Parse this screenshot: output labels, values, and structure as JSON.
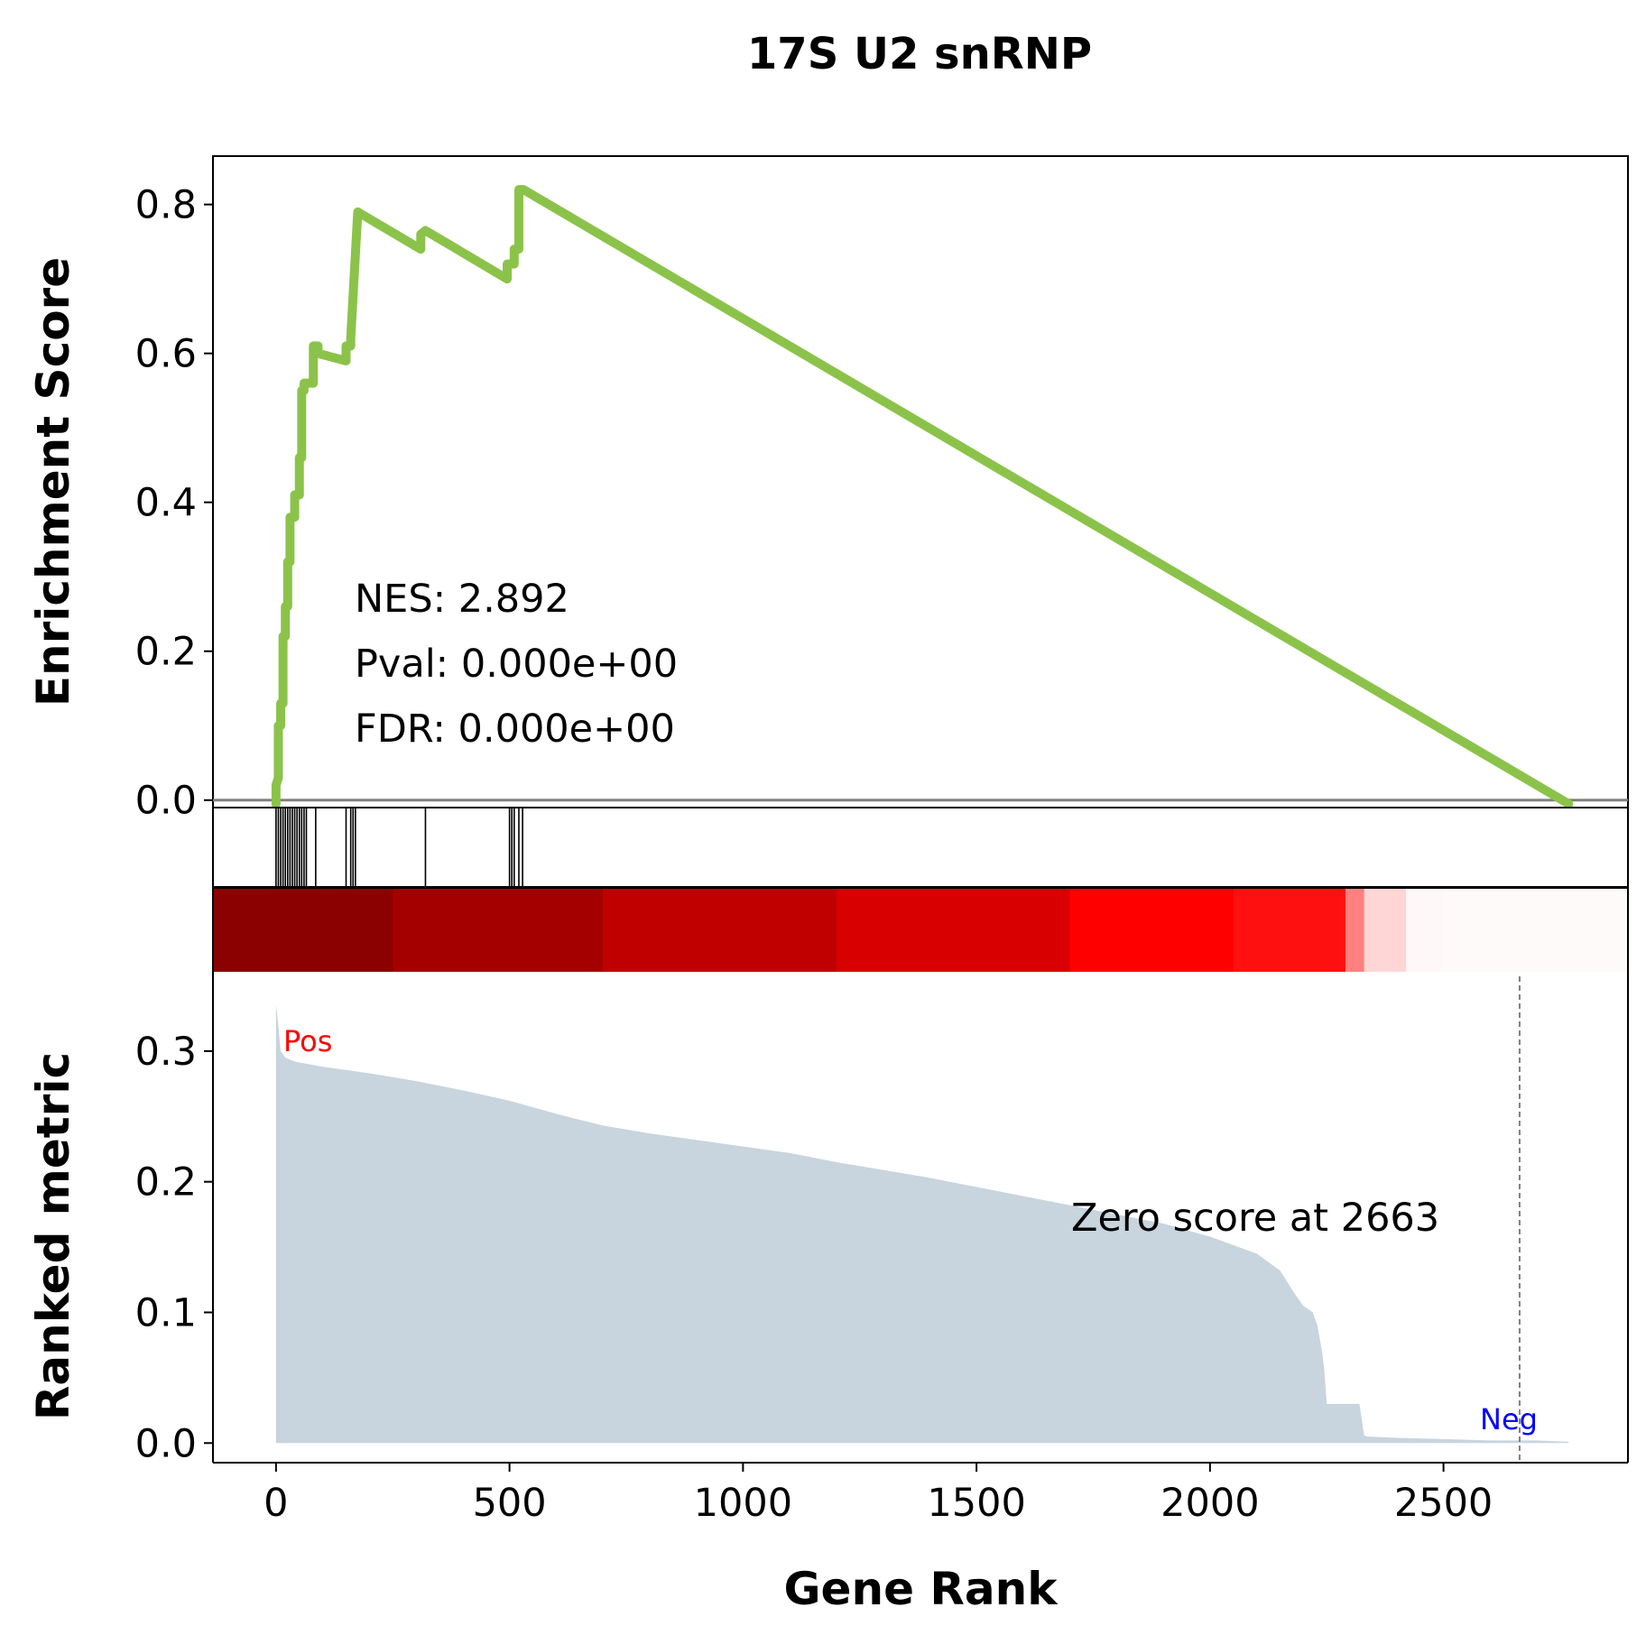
{
  "chart_data": {
    "type": "line",
    "title": "17S U2 snRNP",
    "xlabel": "Gene Rank",
    "xlim": [
      -135,
      2895
    ],
    "x_ticks": [
      "0",
      "500",
      "1000",
      "1500",
      "2000",
      "2500"
    ],
    "grid": false,
    "enrichment": {
      "ylabel": "Enrichment Score",
      "ylim": [
        -0.01,
        0.865
      ],
      "y_ticks": [
        "0.0",
        "0.2",
        "0.4",
        "0.6",
        "0.8"
      ],
      "line_color": "#8bc34a",
      "baseline_color": "#808080",
      "x": [
        0,
        0,
        5,
        5,
        10,
        10,
        15,
        15,
        20,
        20,
        25,
        25,
        30,
        30,
        40,
        40,
        50,
        50,
        55,
        55,
        60,
        60,
        80,
        80,
        90,
        90,
        150,
        150,
        160,
        160,
        175,
        310,
        310,
        320,
        495,
        495,
        510,
        510,
        520,
        520,
        530,
        2768
      ],
      "y": [
        -0.005,
        0.02,
        0.03,
        0.1,
        0.1,
        0.13,
        0.13,
        0.22,
        0.22,
        0.26,
        0.26,
        0.32,
        0.32,
        0.38,
        0.38,
        0.41,
        0.41,
        0.46,
        0.46,
        0.55,
        0.55,
        0.56,
        0.56,
        0.61,
        0.61,
        0.6,
        0.59,
        0.61,
        0.61,
        0.62,
        0.79,
        0.74,
        0.76,
        0.765,
        0.7,
        0.72,
        0.72,
        0.74,
        0.74,
        0.82,
        0.82,
        -0.005
      ]
    },
    "hits": [
      0,
      5,
      10,
      15,
      20,
      25,
      30,
      35,
      40,
      45,
      50,
      55,
      60,
      65,
      85,
      150,
      160,
      165,
      170,
      320,
      500,
      505,
      510,
      520,
      528
    ],
    "rank_colorbar": {
      "colors": [
        "#8b0000",
        "#a50000",
        "#c00000",
        "#d80000",
        "#ff0000",
        "#ff1010",
        "#ff8080",
        "#ffd6d6",
        "#fff8f8",
        "#fffafa"
      ],
      "boundaries": [
        0,
        250,
        700,
        1200,
        1700,
        2050,
        2290,
        2330,
        2420,
        2500,
        2895
      ]
    },
    "ranked_metric": {
      "ylabel": "Ranked metric",
      "ylim": [
        -0.015,
        0.36
      ],
      "y_ticks": [
        "0.0",
        "0.1",
        "0.2",
        "0.3"
      ],
      "fill_color": "#c8d4de",
      "x": [
        0,
        2,
        10,
        20,
        40,
        100,
        200,
        300,
        400,
        500,
        600,
        700,
        800,
        900,
        1000,
        1100,
        1200,
        1300,
        1400,
        1500,
        1600,
        1700,
        1800,
        1900,
        2000,
        2100,
        2150,
        2180,
        2200,
        2220,
        2230,
        2240,
        2245,
        2250,
        2255,
        2260,
        2320,
        2330,
        2335,
        2400,
        2500,
        2600,
        2700,
        2768
      ],
      "y": [
        0.335,
        0.33,
        0.3,
        0.295,
        0.292,
        0.288,
        0.283,
        0.277,
        0.27,
        0.262,
        0.252,
        0.243,
        0.237,
        0.232,
        0.227,
        0.222,
        0.215,
        0.209,
        0.203,
        0.196,
        0.189,
        0.182,
        0.175,
        0.168,
        0.158,
        0.145,
        0.132,
        0.115,
        0.105,
        0.1,
        0.09,
        0.07,
        0.055,
        0.03,
        0.03,
        0.03,
        0.03,
        0.006,
        0.005,
        0.004,
        0.003,
        0.002,
        0.002,
        0.001
      ],
      "zero_score_rank": 2663,
      "zero_label": "Zero score at 2663",
      "pos_label": "Pos",
      "neg_label": "Neg"
    },
    "stats": {
      "nes": "NES: 2.892",
      "pval": "Pval: 0.000e+00",
      "fdr": "FDR: 0.000e+00"
    }
  }
}
